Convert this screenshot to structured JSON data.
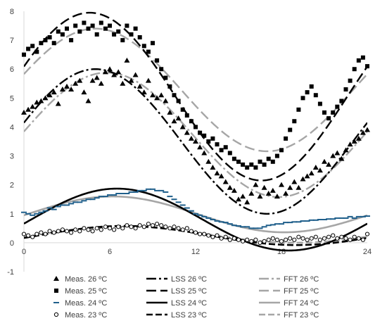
{
  "chart_data": {
    "type": "line",
    "title": "",
    "xlabel": "",
    "ylabel": "",
    "xlim": [
      0,
      24
    ],
    "ylim": [
      -1,
      8
    ],
    "x_ticks": [
      "0",
      "6",
      "12",
      "18",
      "24"
    ],
    "y_ticks": [
      "-1",
      "0",
      "1",
      "2",
      "3",
      "4",
      "5",
      "6",
      "7",
      "8"
    ],
    "grid": false,
    "legend_position": "bottom",
    "series": [
      {
        "name": "Meas. 26 ºC",
        "kind": "markers",
        "marker": "triangle",
        "color": "#000000",
        "x": [
          0,
          0.3,
          0.6,
          0.9,
          1.2,
          1.5,
          1.8,
          2.1,
          2.4,
          2.7,
          3.0,
          3.3,
          3.6,
          3.9,
          4.2,
          4.5,
          4.8,
          5.1,
          5.4,
          5.7,
          6.0,
          6.3,
          6.6,
          6.9,
          7.2,
          7.5,
          7.8,
          8.1,
          8.4,
          8.7,
          9.0,
          9.3,
          9.6,
          9.9,
          10.2,
          10.5,
          10.8,
          11.1,
          11.4,
          11.7,
          12.0,
          12.3,
          12.6,
          12.9,
          13.2,
          13.5,
          13.8,
          14.1,
          14.4,
          14.7,
          15.0,
          15.3,
          15.6,
          15.9,
          16.2,
          16.5,
          16.8,
          17.1,
          17.4,
          17.7,
          18.0,
          18.3,
          18.6,
          18.9,
          19.2,
          19.5,
          19.8,
          20.1,
          20.4,
          20.7,
          21.0,
          21.3,
          21.6,
          21.9,
          22.2,
          22.5,
          22.8,
          23.1,
          23.4,
          23.7,
          24.0
        ],
        "y": [
          4.5,
          4.6,
          4.7,
          4.85,
          4.9,
          5.0,
          5.1,
          5.2,
          4.8,
          5.3,
          5.4,
          5.3,
          5.5,
          5.6,
          5.2,
          4.9,
          5.6,
          5.7,
          5.5,
          5.9,
          6.0,
          5.8,
          5.9,
          5.5,
          6.3,
          5.6,
          5.8,
          5.4,
          5.2,
          5.6,
          5.1,
          5.0,
          5.1,
          4.9,
          4.5,
          4.2,
          4.3,
          4.0,
          3.8,
          3.6,
          3.5,
          3.3,
          3.1,
          2.8,
          2.6,
          2.4,
          2.3,
          2.1,
          1.9,
          1.8,
          1.5,
          1.6,
          1.4,
          1.7,
          2.0,
          1.6,
          1.9,
          1.7,
          1.8,
          1.6,
          2.0,
          1.7,
          1.9,
          2.1,
          1.9,
          2.2,
          2.3,
          2.4,
          2.6,
          2.5,
          2.8,
          2.7,
          3.0,
          3.1,
          2.9,
          3.2,
          3.4,
          3.5,
          3.6,
          3.8,
          3.9
        ]
      },
      {
        "name": "Meas. 25 ºC",
        "kind": "markers",
        "marker": "square",
        "color": "#000000",
        "x": [
          0,
          0.3,
          0.6,
          0.9,
          1.2,
          1.5,
          1.8,
          2.1,
          2.4,
          2.7,
          3.0,
          3.3,
          3.6,
          3.9,
          4.2,
          4.5,
          4.8,
          5.1,
          5.4,
          5.7,
          6.0,
          6.3,
          6.6,
          6.9,
          7.2,
          7.5,
          7.8,
          8.1,
          8.4,
          8.7,
          9.0,
          9.3,
          9.6,
          9.9,
          10.2,
          10.5,
          10.8,
          11.1,
          11.4,
          11.7,
          12.0,
          12.3,
          12.6,
          12.9,
          13.2,
          13.5,
          13.8,
          14.1,
          14.4,
          14.7,
          15.0,
          15.3,
          15.6,
          15.9,
          16.2,
          16.5,
          16.8,
          17.1,
          17.4,
          17.7,
          18.0,
          18.3,
          18.6,
          18.9,
          19.2,
          19.5,
          19.8,
          20.1,
          20.4,
          20.7,
          21.0,
          21.3,
          21.6,
          21.9,
          22.2,
          22.5,
          22.8,
          23.1,
          23.4,
          23.7,
          24.0
        ],
        "y": [
          6.5,
          6.7,
          6.8,
          6.6,
          6.9,
          7.0,
          7.1,
          6.9,
          7.3,
          7.2,
          7.4,
          7.0,
          7.5,
          7.3,
          7.6,
          7.4,
          7.5,
          7.2,
          7.6,
          7.4,
          7.5,
          7.2,
          7.3,
          7.0,
          7.5,
          7.2,
          7.4,
          7.1,
          6.8,
          6.6,
          6.9,
          6.3,
          6.0,
          5.7,
          5.4,
          5.1,
          4.9,
          4.6,
          4.4,
          4.2,
          4.0,
          3.8,
          3.7,
          3.5,
          3.6,
          3.4,
          3.2,
          3.3,
          3.1,
          2.9,
          2.8,
          2.7,
          2.6,
          2.7,
          2.6,
          2.8,
          2.7,
          2.9,
          2.8,
          3.0,
          3.2,
          3.6,
          3.9,
          4.2,
          4.6,
          5.0,
          5.2,
          5.4,
          5.1,
          4.8,
          4.5,
          4.3,
          4.5,
          4.7,
          4.9,
          5.3,
          5.6,
          6.0,
          6.3,
          6.4,
          6.1
        ]
      },
      {
        "name": "Meas. 24 ºC",
        "kind": "markers",
        "marker": "dash",
        "color": "#1f5f8b",
        "x": [
          0,
          0.3,
          0.6,
          0.9,
          1.2,
          1.5,
          1.8,
          2.1,
          2.4,
          2.7,
          3.0,
          3.3,
          3.6,
          3.9,
          4.2,
          4.5,
          4.8,
          5.1,
          5.4,
          5.7,
          6.0,
          6.3,
          6.6,
          6.9,
          7.2,
          7.5,
          7.8,
          8.1,
          8.4,
          8.7,
          9.0,
          9.3,
          9.6,
          9.9,
          10.2,
          10.5,
          10.8,
          11.1,
          11.4,
          11.7,
          12.0,
          12.3,
          12.6,
          12.9,
          13.2,
          13.5,
          13.8,
          14.1,
          14.4,
          14.7,
          15.0,
          15.3,
          15.6,
          15.9,
          16.2,
          16.5,
          16.8,
          17.1,
          17.4,
          17.7,
          18.0,
          18.3,
          18.6,
          18.9,
          19.2,
          19.5,
          19.8,
          20.1,
          20.4,
          20.7,
          21.0,
          21.3,
          21.6,
          21.9,
          22.2,
          22.5,
          22.8,
          23.1,
          23.4,
          23.7,
          24.0
        ],
        "y": [
          1.05,
          1.0,
          0.95,
          1.0,
          1.05,
          1.1,
          1.2,
          1.15,
          1.25,
          1.3,
          1.3,
          1.35,
          1.4,
          1.4,
          1.45,
          1.5,
          1.5,
          1.55,
          1.6,
          1.6,
          1.65,
          1.65,
          1.7,
          1.7,
          1.7,
          1.75,
          1.75,
          1.8,
          1.8,
          1.85,
          1.85,
          1.8,
          1.8,
          1.75,
          1.6,
          1.5,
          1.4,
          1.3,
          1.2,
          1.1,
          1.0,
          0.95,
          0.9,
          0.85,
          0.8,
          0.75,
          0.72,
          0.7,
          0.65,
          0.6,
          0.58,
          0.55,
          0.55,
          0.5,
          0.5,
          0.5,
          0.55,
          0.6,
          0.62,
          0.65,
          0.65,
          0.7,
          0.7,
          0.72,
          0.72,
          0.75,
          0.75,
          0.78,
          0.78,
          0.8,
          0.8,
          0.82,
          0.82,
          0.85,
          0.85,
          0.85,
          0.9,
          0.85,
          0.9,
          0.9,
          0.92
        ]
      },
      {
        "name": "Meas. 23 ºC",
        "kind": "markers",
        "marker": "circle",
        "color": "#000000",
        "x": [
          0,
          0.3,
          0.6,
          0.9,
          1.2,
          1.5,
          1.8,
          2.1,
          2.4,
          2.7,
          3.0,
          3.3,
          3.6,
          3.9,
          4.2,
          4.5,
          4.8,
          5.1,
          5.4,
          5.7,
          6.0,
          6.3,
          6.6,
          6.9,
          7.2,
          7.5,
          7.8,
          8.1,
          8.4,
          8.7,
          9.0,
          9.3,
          9.6,
          9.9,
          10.2,
          10.5,
          10.8,
          11.1,
          11.4,
          11.7,
          12.0,
          12.3,
          12.6,
          12.9,
          13.2,
          13.5,
          13.8,
          14.1,
          14.4,
          14.7,
          15.0,
          15.3,
          15.6,
          15.9,
          16.2,
          16.5,
          16.8,
          17.1,
          17.4,
          17.7,
          18.0,
          18.3,
          18.6,
          18.9,
          19.2,
          19.5,
          19.8,
          20.1,
          20.4,
          20.7,
          21.0,
          21.3,
          21.6,
          21.9,
          22.2,
          22.5,
          22.8,
          23.1,
          23.4,
          23.7,
          24.0
        ],
        "y": [
          0.3,
          0.25,
          0.2,
          0.3,
          0.35,
          0.3,
          0.4,
          0.35,
          0.4,
          0.45,
          0.4,
          0.35,
          0.45,
          0.4,
          0.5,
          0.45,
          0.4,
          0.5,
          0.45,
          0.55,
          0.5,
          0.45,
          0.55,
          0.5,
          0.6,
          0.55,
          0.5,
          0.6,
          0.55,
          0.65,
          0.6,
          0.65,
          0.6,
          0.55,
          0.5,
          0.55,
          0.5,
          0.45,
          0.5,
          0.4,
          0.35,
          0.3,
          0.3,
          0.25,
          0.2,
          0.25,
          0.15,
          0.2,
          0.1,
          0.15,
          0.1,
          0.05,
          0.1,
          0.05,
          0.1,
          0.0,
          0.05,
          0.1,
          0.15,
          0.1,
          0.05,
          0.1,
          0.15,
          0.1,
          0.2,
          0.15,
          0.1,
          0.15,
          0.2,
          0.1,
          0.15,
          0.2,
          0.25,
          0.15,
          0.2,
          0.15,
          0.1,
          0.2,
          0.15,
          0.1,
          0.3
        ]
      },
      {
        "name": "LSS 26 ºC",
        "kind": "fit",
        "mean": 3.5,
        "amp": 2.5,
        "peak": 5.0,
        "dash": "14,4,3,4",
        "color": "#000000",
        "width": 2.4
      },
      {
        "name": "LSS 25 ºC",
        "kind": "fit",
        "mean": 5.05,
        "amp": 2.9,
        "peak": 4.6,
        "dash": "14,6",
        "color": "#000000",
        "width": 2.4
      },
      {
        "name": "LSS 24 ºC",
        "kind": "fit",
        "mean": 0.8,
        "amp": 1.07,
        "peak": 6.5,
        "dash": "",
        "color": "#000000",
        "width": 2.6
      },
      {
        "name": "LSS 23 ºC",
        "kind": "fit",
        "mean": 0.25,
        "amp": 0.33,
        "peak": 7.0,
        "dash": "9,4",
        "color": "#000000",
        "width": 2.6
      },
      {
        "name": "FFT 26 ºC",
        "kind": "fit",
        "mean": 3.73,
        "amp": 2.15,
        "peak": 5.8,
        "dash": "14,4,3,4",
        "color": "#a6a6a6",
        "width": 2.4
      },
      {
        "name": "FFT 25 ºC",
        "kind": "fit",
        "mean": 5.28,
        "amp": 2.12,
        "peak": 5.0,
        "dash": "14,6",
        "color": "#a6a6a6",
        "width": 2.4
      },
      {
        "name": "FFT 24 ºC",
        "kind": "fit",
        "mean": 0.98,
        "amp": 0.62,
        "peak": 6.2,
        "dash": "",
        "color": "#a6a6a6",
        "width": 2.6
      },
      {
        "name": "FFT 23 ºC",
        "kind": "fit",
        "mean": 0.28,
        "amp": 0.28,
        "peak": 7.0,
        "dash": "9,4",
        "color": "#a6a6a6",
        "width": 2.6
      }
    ]
  }
}
